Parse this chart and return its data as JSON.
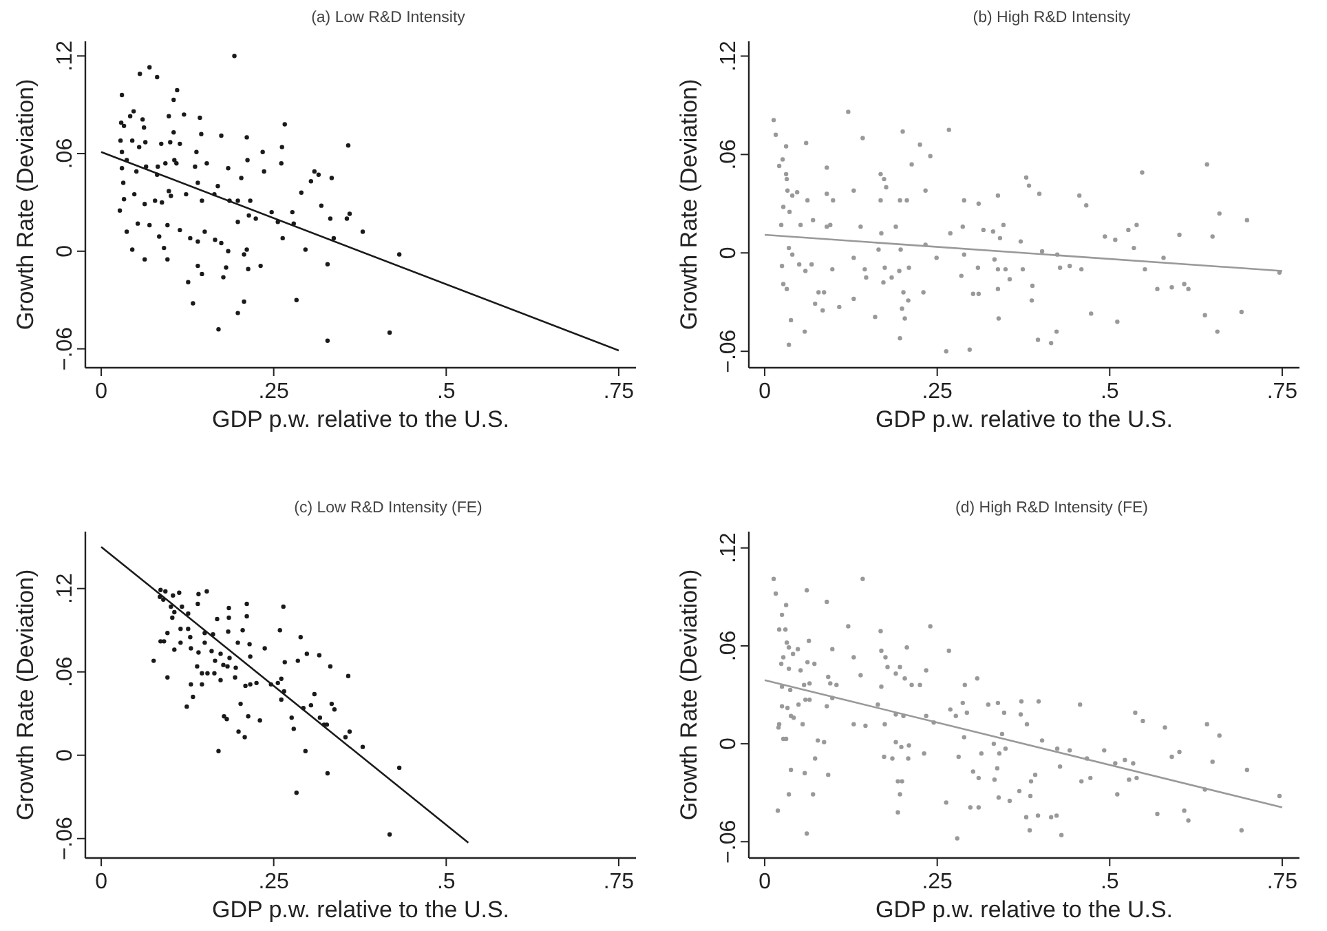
{
  "chart_data": [
    {
      "type": "scatter",
      "title": "(a)  Low R&D Intensity",
      "xlabel": "GDP p.w. relative to the U.S.",
      "ylabel": "Growth Rate (Deviation)",
      "xlim": [
        -0.023,
        0.775
      ],
      "ylim": [
        -0.0716,
        0.129
      ],
      "xticks": [
        {
          "value": 0,
          "label": "0"
        },
        {
          "value": 0.25,
          "label": ".25"
        },
        {
          "value": 0.5,
          "label": ".5"
        },
        {
          "value": 0.75,
          "label": ".75"
        }
      ],
      "yticks": [
        {
          "value": -0.06,
          "label": "−.06"
        },
        {
          "value": 0,
          "label": "0"
        },
        {
          "value": 0.06,
          "label": ".06"
        },
        {
          "value": 0.12,
          "label": ".12"
        }
      ],
      "grid": false,
      "series": [
        {
          "marker": "circle",
          "color": "#1a1a1a",
          "x": [
            0.03,
            0.056,
            0.07,
            0.081,
            0.193,
            0.11,
            0.105,
            0.029,
            0.033,
            0.047,
            0.06,
            0.062,
            0.042,
            0.028,
            0.03,
            0.045,
            0.055,
            0.064,
            0.087,
            0.1,
            0.105,
            0.114,
            0.12,
            0.098,
            0.143,
            0.145,
            0.138,
            0.174,
            0.211,
            0.234,
            0.262,
            0.266,
            0.358,
            0.037,
            0.03,
            0.051,
            0.065,
            0.082,
            0.093,
            0.106,
            0.109,
            0.136,
            0.153,
            0.212,
            0.184,
            0.203,
            0.236,
            0.261,
            0.309,
            0.315,
            0.334,
            0.081,
            0.098,
            0.032,
            0.048,
            0.033,
            0.063,
            0.078,
            0.088,
            0.101,
            0.123,
            0.14,
            0.146,
            0.164,
            0.169,
            0.186,
            0.198,
            0.216,
            0.247,
            0.277,
            0.29,
            0.304,
            0.319,
            0.332,
            0.356,
            0.36,
            0.379,
            0.337,
            0.027,
            0.053,
            0.037,
            0.07,
            0.084,
            0.096,
            0.114,
            0.129,
            0.14,
            0.15,
            0.165,
            0.174,
            0.184,
            0.198,
            0.214,
            0.224,
            0.256,
            0.263,
            0.279,
            0.296,
            0.045,
            0.063,
            0.091,
            0.096,
            0.211,
            0.207,
            0.14,
            0.146,
            0.126,
            0.177,
            0.181,
            0.213,
            0.231,
            0.328,
            0.133,
            0.207,
            0.198,
            0.283,
            0.17,
            0.328,
            0.418,
            0.432
          ],
          "values": [
            0.096,
            0.109,
            0.113,
            0.107,
            0.12,
            0.099,
            0.093,
            0.079,
            0.077,
            0.086,
            0.081,
            0.076,
            0.083,
            0.068,
            0.061,
            0.068,
            0.064,
            0.067,
            0.066,
            0.067,
            0.073,
            0.066,
            0.084,
            0.083,
            0.082,
            0.072,
            0.061,
            0.071,
            0.07,
            0.061,
            0.064,
            0.078,
            0.065,
            0.056,
            0.051,
            0.049,
            0.052,
            0.052,
            0.054,
            0.056,
            0.054,
            0.052,
            0.054,
            0.056,
            0.051,
            0.045,
            0.049,
            0.054,
            0.049,
            0.047,
            0.045,
            0.047,
            0.037,
            0.042,
            0.035,
            0.032,
            0.029,
            0.031,
            0.03,
            0.034,
            0.035,
            0.042,
            0.031,
            0.035,
            0.04,
            0.031,
            0.031,
            0.031,
            0.024,
            0.024,
            0.036,
            0.043,
            0.028,
            0.02,
            0.02,
            0.023,
            0.012,
            0.008,
            0.025,
            0.017,
            0.012,
            0.016,
            0.009,
            0.016,
            0.013,
            0.008,
            0.006,
            0.012,
            0.007,
            0.005,
            0.0,
            0.018,
            0.022,
            0.02,
            0.018,
            0.008,
            0.017,
            0.001,
            0.001,
            -0.005,
            0.002,
            -0.005,
            0.001,
            -0.002,
            -0.009,
            -0.014,
            -0.019,
            -0.016,
            -0.01,
            -0.011,
            -0.009,
            -0.008,
            -0.032,
            -0.031,
            -0.038,
            -0.03,
            -0.048,
            -0.055,
            -0.05,
            -0.002
          ]
        },
        {
          "type": "line",
          "color": "#1a1a1a",
          "x": [
            0,
            0.75
          ],
          "values": [
            0.061,
            -0.061
          ]
        }
      ]
    },
    {
      "type": "scatter",
      "title": "(b)  High R&D Intensity",
      "xlabel": "GDP p.w. relative to the U.S.",
      "ylabel": "Growth Rate (Deviation)",
      "xlim": [
        -0.023,
        0.775
      ],
      "ylim": [
        -0.07,
        0.129
      ],
      "xticks": [
        {
          "value": 0,
          "label": "0"
        },
        {
          "value": 0.25,
          "label": ".25"
        },
        {
          "value": 0.5,
          "label": ".5"
        },
        {
          "value": 0.75,
          "label": ".75"
        }
      ],
      "yticks": [
        {
          "value": -0.06,
          "label": "−.06"
        },
        {
          "value": 0,
          "label": "0"
        },
        {
          "value": 0.06,
          "label": ".06"
        },
        {
          "value": 0.12,
          "label": ".12"
        }
      ],
      "grid": false,
      "series": [
        {
          "marker": "circle",
          "color": "#999999",
          "x": [
            0.013,
            0.016,
            0.121,
            0.031,
            0.06,
            0.142,
            0.2,
            0.267,
            0.225,
            0.24,
            0.213,
            0.021,
            0.026,
            0.09,
            0.031,
            0.032,
            0.033,
            0.04,
            0.047,
            0.062,
            0.09,
            0.099,
            0.129,
            0.168,
            0.173,
            0.176,
            0.168,
            0.196,
            0.206,
            0.233,
            0.289,
            0.31,
            0.338,
            0.379,
            0.383,
            0.398,
            0.456,
            0.466,
            0.547,
            0.641,
            0.659,
            0.699,
            0.027,
            0.036,
            0.024,
            0.052,
            0.07,
            0.09,
            0.095,
            0.139,
            0.19,
            0.169,
            0.233,
            0.269,
            0.287,
            0.317,
            0.331,
            0.346,
            0.341,
            0.371,
            0.493,
            0.508,
            0.527,
            0.539,
            0.535,
            0.601,
            0.649,
            0.035,
            0.04,
            0.025,
            0.05,
            0.059,
            0.068,
            0.098,
            0.129,
            0.145,
            0.147,
            0.165,
            0.174,
            0.172,
            0.184,
            0.195,
            0.197,
            0.209,
            0.249,
            0.285,
            0.289,
            0.309,
            0.333,
            0.338,
            0.349,
            0.355,
            0.374,
            0.402,
            0.424,
            0.428,
            0.442,
            0.459,
            0.551,
            0.578,
            0.569,
            0.59,
            0.608,
            0.614,
            0.746,
            0.027,
            0.032,
            0.078,
            0.086,
            0.073,
            0.084,
            0.108,
            0.129,
            0.201,
            0.208,
            0.23,
            0.199,
            0.203,
            0.302,
            0.31,
            0.338,
            0.388,
            0.387,
            0.473,
            0.638,
            0.691,
            0.038,
            0.058,
            0.035,
            0.16,
            0.196,
            0.339,
            0.423,
            0.396,
            0.415,
            0.511,
            0.656,
            0.263,
            0.297
          ],
          "values": [
            0.081,
            0.072,
            0.086,
            0.065,
            0.067,
            0.07,
            0.074,
            0.075,
            0.066,
            0.059,
            0.054,
            0.053,
            0.057,
            0.052,
            0.048,
            0.045,
            0.038,
            0.035,
            0.037,
            0.032,
            0.036,
            0.032,
            0.038,
            0.048,
            0.045,
            0.04,
            0.032,
            0.032,
            0.032,
            0.038,
            0.032,
            0.03,
            0.035,
            0.046,
            0.041,
            0.036,
            0.035,
            0.029,
            0.049,
            0.054,
            0.024,
            0.02,
            0.028,
            0.025,
            0.017,
            0.017,
            0.02,
            0.016,
            0.017,
            0.016,
            0.016,
            0.012,
            0.005,
            0.012,
            0.016,
            0.014,
            0.013,
            0.017,
            0.009,
            0.007,
            0.01,
            0.008,
            0.014,
            0.017,
            0.003,
            0.011,
            0.01,
            0.003,
            -0.001,
            -0.008,
            -0.007,
            -0.011,
            -0.007,
            -0.01,
            -0.003,
            -0.01,
            -0.015,
            0.002,
            -0.009,
            -0.018,
            -0.015,
            -0.011,
            0.002,
            -0.009,
            -0.003,
            -0.014,
            -0.001,
            -0.009,
            -0.004,
            -0.01,
            -0.01,
            -0.016,
            -0.01,
            0.001,
            -0.001,
            -0.009,
            -0.008,
            -0.01,
            -0.01,
            -0.003,
            -0.022,
            -0.021,
            -0.019,
            -0.022,
            -0.012,
            -0.019,
            -0.022,
            -0.024,
            -0.024,
            -0.031,
            -0.035,
            -0.033,
            -0.028,
            -0.024,
            -0.029,
            -0.024,
            -0.034,
            -0.04,
            -0.025,
            -0.025,
            -0.022,
            -0.02,
            -0.029,
            -0.037,
            -0.038,
            -0.036,
            -0.041,
            -0.048,
            -0.056,
            -0.039,
            -0.052,
            -0.04,
            -0.048,
            -0.053,
            -0.055,
            -0.042,
            -0.048,
            -0.06,
            -0.059
          ]
        },
        {
          "type": "line",
          "color": "#999999",
          "x": [
            0,
            0.75
          ],
          "values": [
            0.011,
            -0.011
          ]
        }
      ]
    },
    {
      "type": "scatter",
      "title": "(c)  Low R&D Intensity (FE)",
      "xlabel": "GDP p.w. relative to the U.S.",
      "ylabel": "Growth Rate (Deviation)",
      "xlim": [
        -0.023,
        0.775
      ],
      "ylim": [
        -0.074,
        0.161
      ],
      "xticks": [
        {
          "value": 0,
          "label": "0"
        },
        {
          "value": 0.25,
          "label": ".25"
        },
        {
          "value": 0.5,
          "label": ".5"
        },
        {
          "value": 0.75,
          "label": ".75"
        }
      ],
      "yticks": [
        {
          "value": -0.06,
          "label": "−.06"
        },
        {
          "value": 0,
          "label": "0"
        },
        {
          "value": 0.06,
          "label": ".06"
        },
        {
          "value": 0.12,
          "label": ".12"
        }
      ],
      "grid": false,
      "series": [
        {
          "marker": "circle",
          "color": "#1a1a1a",
          "x": [
            0.086,
            0.093,
            0.085,
            0.09,
            0.104,
            0.113,
            0.141,
            0.153,
            0.14,
            0.101,
            0.117,
            0.126,
            0.103,
            0.106,
            0.185,
            0.211,
            0.264,
            0.168,
            0.211,
            0.185,
            0.126,
            0.115,
            0.096,
            0.086,
            0.091,
            0.106,
            0.115,
            0.129,
            0.15,
            0.162,
            0.184,
            0.205,
            0.259,
            0.289,
            0.15,
            0.13,
            0.141,
            0.16,
            0.173,
            0.198,
            0.215,
            0.237,
            0.186,
            0.216,
            0.183,
            0.195,
            0.177,
            0.165,
            0.266,
            0.285,
            0.298,
            0.316,
            0.332,
            0.076,
            0.139,
            0.146,
            0.154,
            0.164,
            0.173,
            0.194,
            0.209,
            0.216,
            0.225,
            0.246,
            0.256,
            0.261,
            0.265,
            0.358,
            0.096,
            0.13,
            0.146,
            0.133,
            0.124,
            0.202,
            0.261,
            0.304,
            0.309,
            0.293,
            0.334,
            0.338,
            0.178,
            0.182,
            0.213,
            0.23,
            0.276,
            0.279,
            0.317,
            0.323,
            0.327,
            0.199,
            0.208,
            0.36,
            0.354,
            0.379,
            0.17,
            0.296,
            0.328,
            0.432,
            0.283,
            0.418
          ],
          "values": [
            0.119,
            0.118,
            0.114,
            0.112,
            0.115,
            0.117,
            0.116,
            0.118,
            0.109,
            0.107,
            0.107,
            0.102,
            0.099,
            0.103,
            0.106,
            0.109,
            0.107,
            0.098,
            0.1,
            0.099,
            0.091,
            0.091,
            0.088,
            0.082,
            0.082,
            0.076,
            0.081,
            0.085,
            0.088,
            0.087,
            0.089,
            0.09,
            0.09,
            0.085,
            0.081,
            0.077,
            0.074,
            0.075,
            0.073,
            0.081,
            0.08,
            0.077,
            0.07,
            0.071,
            0.064,
            0.063,
            0.065,
            0.068,
            0.067,
            0.068,
            0.073,
            0.072,
            0.064,
            0.068,
            0.064,
            0.059,
            0.059,
            0.059,
            0.054,
            0.056,
            0.05,
            0.051,
            0.052,
            0.051,
            0.052,
            0.055,
            0.046,
            0.057,
            0.056,
            0.051,
            0.051,
            0.042,
            0.035,
            0.037,
            0.04,
            0.036,
            0.044,
            0.034,
            0.037,
            0.033,
            0.028,
            0.026,
            0.028,
            0.025,
            0.027,
            0.019,
            0.027,
            0.022,
            0.022,
            0.017,
            0.013,
            0.017,
            0.013,
            0.006,
            0.003,
            0.003,
            -0.013,
            -0.009,
            -0.027,
            -0.057
          ]
        },
        {
          "type": "line",
          "color": "#1a1a1a",
          "x": [
            0,
            0.532
          ],
          "values": [
            0.15,
            -0.063
          ]
        }
      ]
    },
    {
      "type": "scatter",
      "title": "(d)  High R&D Intensity (FE)",
      "xlabel": "GDP p.w. relative to the U.S.",
      "ylabel": "Growth Rate (Deviation)",
      "xlim": [
        -0.023,
        0.775
      ],
      "ylim": [
        -0.07,
        0.13
      ],
      "xticks": [
        {
          "value": 0,
          "label": "0"
        },
        {
          "value": 0.25,
          "label": ".25"
        },
        {
          "value": 0.5,
          "label": ".5"
        },
        {
          "value": 0.75,
          "label": ".75"
        }
      ],
      "yticks": [
        {
          "value": -0.06,
          "label": "−.06"
        },
        {
          "value": 0,
          "label": "0"
        },
        {
          "value": 0.06,
          "label": ".06"
        },
        {
          "value": 0.12,
          "label": ".12"
        }
      ],
      "grid": false,
      "series": [
        {
          "marker": "circle",
          "color": "#999999",
          "x": [
            0.013,
            0.016,
            0.142,
            0.031,
            0.061,
            0.09,
            0.025,
            0.021,
            0.03,
            0.121,
            0.168,
            0.24,
            0.267,
            0.206,
            0.032,
            0.035,
            0.041,
            0.048,
            0.064,
            0.027,
            0.024,
            0.035,
            0.052,
            0.062,
            0.072,
            0.098,
            0.129,
            0.169,
            0.175,
            0.178,
            0.196,
            0.19,
            0.234,
            0.308,
            0.29,
            0.225,
            0.213,
            0.203,
            0.139,
            0.092,
            0.095,
            0.104,
            0.065,
            0.057,
            0.025,
            0.037,
            0.025,
            0.033,
            0.049,
            0.059,
            0.065,
            0.038,
            0.042,
            0.021,
            0.02,
            0.055,
            0.09,
            0.098,
            0.129,
            0.146,
            0.164,
            0.169,
            0.174,
            0.19,
            0.201,
            0.245,
            0.234,
            0.269,
            0.277,
            0.287,
            0.293,
            0.324,
            0.338,
            0.347,
            0.372,
            0.397,
            0.38,
            0.371,
            0.457,
            0.537,
            0.548,
            0.58,
            0.641,
            0.659,
            0.027,
            0.031,
            0.077,
            0.086,
            0.289,
            0.332,
            0.344,
            0.402,
            0.19,
            0.198,
            0.209,
            0.231,
            0.208,
            0.173,
            0.185,
            0.073,
            0.281,
            0.314,
            0.34,
            0.349,
            0.424,
            0.442,
            0.467,
            0.492,
            0.508,
            0.522,
            0.534,
            0.59,
            0.601,
            0.649,
            0.699,
            0.038,
            0.058,
            0.092,
            0.302,
            0.31,
            0.333,
            0.337,
            0.392,
            0.386,
            0.428,
            0.459,
            0.472,
            0.528,
            0.539,
            0.193,
            0.199,
            0.035,
            0.07,
            0.196,
            0.263,
            0.298,
            0.31,
            0.339,
            0.355,
            0.369,
            0.385,
            0.638,
            0.746,
            0.511,
            0.019,
            0.193,
            0.379,
            0.396,
            0.415,
            0.423,
            0.569,
            0.608,
            0.614,
            0.384,
            0.43,
            0.061,
            0.279,
            0.691
          ],
          "values": [
            0.101,
            0.092,
            0.101,
            0.085,
            0.094,
            0.087,
            0.079,
            0.07,
            0.07,
            0.072,
            0.069,
            0.072,
            0.057,
            0.059,
            0.062,
            0.059,
            0.055,
            0.058,
            0.063,
            0.053,
            0.049,
            0.046,
            0.045,
            0.05,
            0.049,
            0.058,
            0.053,
            0.057,
            0.053,
            0.047,
            0.047,
            0.043,
            0.045,
            0.04,
            0.036,
            0.036,
            0.036,
            0.04,
            0.042,
            0.041,
            0.037,
            0.036,
            0.037,
            0.036,
            0.035,
            0.033,
            0.023,
            0.022,
            0.024,
            0.027,
            0.027,
            0.017,
            0.016,
            0.012,
            0.01,
            0.012,
            0.023,
            0.028,
            0.012,
            0.011,
            0.024,
            0.035,
            0.012,
            0.018,
            0.017,
            0.013,
            0.017,
            0.021,
            0.017,
            0.025,
            0.019,
            0.024,
            0.025,
            0.019,
            0.026,
            0.026,
            0.012,
            0.018,
            0.024,
            0.019,
            0.014,
            0.01,
            0.012,
            0.005,
            0.003,
            0.003,
            0.002,
            0.001,
            0.004,
            0.0,
            0.006,
            0.002,
            0.001,
            -0.002,
            -0.001,
            -0.006,
            -0.009,
            -0.008,
            -0.009,
            -0.009,
            -0.008,
            -0.006,
            -0.006,
            -0.003,
            -0.003,
            -0.004,
            -0.009,
            -0.004,
            -0.012,
            -0.01,
            -0.012,
            -0.008,
            -0.005,
            -0.011,
            -0.016,
            -0.016,
            -0.018,
            -0.019,
            -0.017,
            -0.021,
            -0.022,
            -0.015,
            -0.019,
            -0.023,
            -0.014,
            -0.023,
            -0.021,
            -0.022,
            -0.021,
            -0.023,
            -0.023,
            -0.031,
            -0.031,
            -0.031,
            -0.036,
            -0.039,
            -0.039,
            -0.033,
            -0.035,
            -0.029,
            -0.032,
            -0.028,
            -0.032,
            -0.031,
            -0.041,
            -0.042,
            -0.045,
            -0.044,
            -0.045,
            -0.044,
            -0.043,
            -0.041,
            -0.047,
            -0.053,
            -0.056,
            -0.055,
            -0.058,
            -0.053
          ]
        },
        {
          "type": "line",
          "color": "#999999",
          "x": [
            0,
            0.75
          ],
          "values": [
            0.039,
            -0.039
          ]
        }
      ]
    }
  ]
}
